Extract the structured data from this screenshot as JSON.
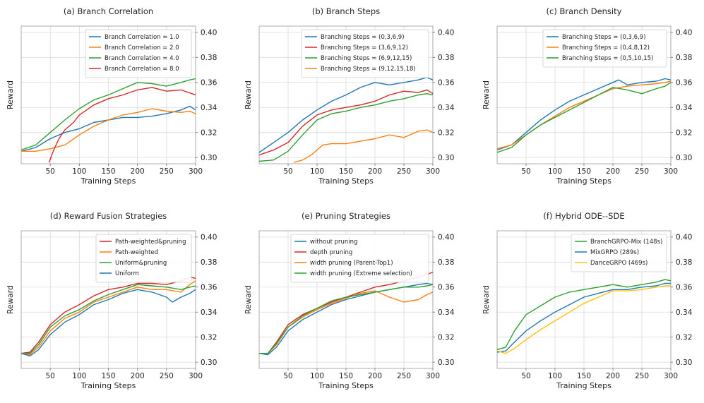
{
  "chart_data": [
    {
      "type": "line",
      "title": "(a) Branch Correlation",
      "xlabel": "Training Steps",
      "ylabel": "Reward",
      "xlim": [
        0,
        300
      ],
      "ylim": [
        0.295,
        0.405
      ],
      "xticks": [
        50,
        100,
        150,
        200,
        250,
        300
      ],
      "yticks": [
        0.3,
        0.32,
        0.34,
        0.36,
        0.38,
        0.4
      ],
      "y_axis_side": "right",
      "grid": true,
      "legend": "top-right",
      "series": [
        {
          "name": "Branch Correlation = 1.0",
          "color": "#1f77b4",
          "x": [
            0,
            25,
            50,
            75,
            100,
            125,
            150,
            175,
            200,
            225,
            250,
            275,
            290,
            300
          ],
          "y": [
            0.305,
            0.308,
            0.315,
            0.32,
            0.323,
            0.328,
            0.33,
            0.332,
            0.332,
            0.333,
            0.335,
            0.338,
            0.341,
            0.338
          ]
        },
        {
          "name": "Branch Correlation = 2.0",
          "color": "#ff7f0e",
          "x": [
            0,
            25,
            50,
            75,
            100,
            125,
            150,
            175,
            200,
            225,
            250,
            275,
            290,
            300
          ],
          "y": [
            0.305,
            0.305,
            0.307,
            0.31,
            0.318,
            0.325,
            0.33,
            0.334,
            0.336,
            0.339,
            0.337,
            0.336,
            0.337,
            0.335
          ]
        },
        {
          "name": "Branch Correlation = 4.0",
          "color": "#2ca02c",
          "x": [
            0,
            25,
            50,
            75,
            100,
            125,
            150,
            175,
            200,
            225,
            250,
            275,
            290,
            300
          ],
          "y": [
            0.306,
            0.31,
            0.32,
            0.33,
            0.339,
            0.346,
            0.35,
            0.355,
            0.36,
            0.359,
            0.357,
            0.36,
            0.362,
            0.363
          ]
        },
        {
          "name": "Branch Correlation = 8.0",
          "color": "#d62728",
          "x": [
            48,
            55,
            65,
            75,
            90,
            100,
            125,
            150,
            175,
            200,
            225,
            250,
            275,
            300
          ],
          "y": [
            0.296,
            0.305,
            0.315,
            0.322,
            0.328,
            0.334,
            0.342,
            0.347,
            0.35,
            0.354,
            0.356,
            0.353,
            0.354,
            0.35
          ]
        }
      ]
    },
    {
      "type": "line",
      "title": "(b) Branch Steps",
      "xlabel": "Training Steps",
      "ylabel": "Reward",
      "xlim": [
        0,
        300
      ],
      "ylim": [
        0.295,
        0.405
      ],
      "xticks": [
        50,
        100,
        150,
        200,
        250,
        300
      ],
      "yticks": [
        0.3,
        0.32,
        0.34,
        0.36,
        0.38,
        0.4
      ],
      "y_axis_side": "right",
      "grid": true,
      "legend": "top-right",
      "series": [
        {
          "name": "Branching Steps = (0,3,6,9)",
          "color": "#1f77b4",
          "x": [
            0,
            25,
            50,
            75,
            100,
            125,
            150,
            175,
            200,
            225,
            250,
            275,
            290,
            300
          ],
          "y": [
            0.304,
            0.312,
            0.32,
            0.33,
            0.338,
            0.345,
            0.35,
            0.356,
            0.36,
            0.358,
            0.36,
            0.362,
            0.364,
            0.362
          ]
        },
        {
          "name": "Branching Steps = (3,6,9,12)",
          "color": "#d62728",
          "x": [
            0,
            25,
            50,
            75,
            100,
            125,
            150,
            175,
            200,
            225,
            250,
            275,
            290,
            300
          ],
          "y": [
            0.302,
            0.306,
            0.312,
            0.325,
            0.334,
            0.338,
            0.34,
            0.342,
            0.345,
            0.35,
            0.353,
            0.352,
            0.354,
            0.351
          ]
        },
        {
          "name": "Branching Steps = (6,9,12,15)",
          "color": "#2ca02c",
          "x": [
            0,
            25,
            50,
            75,
            100,
            125,
            150,
            175,
            200,
            225,
            250,
            275,
            290,
            300
          ],
          "y": [
            0.297,
            0.298,
            0.305,
            0.318,
            0.33,
            0.335,
            0.337,
            0.34,
            0.342,
            0.345,
            0.347,
            0.35,
            0.351,
            0.35
          ]
        },
        {
          "name": "Branching Steps = (9,12,15,18)",
          "color": "#ff7f0e",
          "x": [
            60,
            75,
            90,
            100,
            110,
            125,
            150,
            175,
            200,
            225,
            250,
            275,
            290,
            300
          ],
          "y": [
            0.296,
            0.298,
            0.302,
            0.306,
            0.31,
            0.311,
            0.311,
            0.313,
            0.315,
            0.318,
            0.316,
            0.321,
            0.322,
            0.32
          ]
        }
      ]
    },
    {
      "type": "line",
      "title": "(c) Branch Density",
      "xlabel": "Training Steps",
      "ylabel": "Reward",
      "xlim": [
        0,
        300
      ],
      "ylim": [
        0.295,
        0.405
      ],
      "xticks": [
        50,
        100,
        150,
        200,
        250,
        300
      ],
      "yticks": [
        0.3,
        0.32,
        0.34,
        0.36,
        0.38,
        0.4
      ],
      "y_axis_side": "right",
      "grid": true,
      "legend": "top-right",
      "series": [
        {
          "name": "Branching Steps = (0,3,6,9)",
          "color": "#1f77b4",
          "x": [
            0,
            25,
            50,
            75,
            100,
            125,
            150,
            175,
            200,
            210,
            225,
            250,
            275,
            290,
            300
          ],
          "y": [
            0.306,
            0.31,
            0.32,
            0.33,
            0.338,
            0.345,
            0.35,
            0.355,
            0.36,
            0.362,
            0.358,
            0.36,
            0.361,
            0.363,
            0.362
          ]
        },
        {
          "name": "Branching Steps = (0,4,8,12)",
          "color": "#ff7f0e",
          "x": [
            0,
            25,
            50,
            75,
            100,
            125,
            150,
            175,
            200,
            225,
            250,
            275,
            290,
            300
          ],
          "y": [
            0.307,
            0.31,
            0.318,
            0.326,
            0.333,
            0.34,
            0.345,
            0.35,
            0.355,
            0.357,
            0.358,
            0.359,
            0.36,
            0.361
          ]
        },
        {
          "name": "Branching Steps = (0,5,10,15)",
          "color": "#2ca02c",
          "x": [
            0,
            25,
            50,
            75,
            100,
            125,
            150,
            175,
            200,
            225,
            250,
            275,
            290,
            300
          ],
          "y": [
            0.304,
            0.308,
            0.318,
            0.326,
            0.332,
            0.338,
            0.344,
            0.35,
            0.356,
            0.354,
            0.351,
            0.355,
            0.357,
            0.36
          ]
        }
      ]
    },
    {
      "type": "line",
      "title": "(d) Reward Fusion Strategies",
      "xlabel": "Training Steps",
      "ylabel": "Reward",
      "xlim": [
        0,
        300
      ],
      "ylim": [
        0.295,
        0.405
      ],
      "xticks": [
        50,
        100,
        150,
        200,
        250,
        300
      ],
      "yticks": [
        0.3,
        0.32,
        0.34,
        0.36,
        0.38,
        0.4
      ],
      "y_axis_side": "right",
      "grid": true,
      "legend": "top-right",
      "series": [
        {
          "name": "Path-weighted&pruning",
          "color": "#d62728",
          "x": [
            0,
            15,
            30,
            50,
            75,
            100,
            125,
            150,
            175,
            200,
            225,
            250,
            275,
            290,
            300
          ],
          "y": [
            0.307,
            0.308,
            0.316,
            0.33,
            0.34,
            0.346,
            0.353,
            0.358,
            0.36,
            0.363,
            0.363,
            0.362,
            0.365,
            0.368,
            0.367
          ]
        },
        {
          "name": "Path-weighted",
          "color": "#ff7f0e",
          "x": [
            0,
            15,
            30,
            50,
            75,
            100,
            125,
            150,
            175,
            200,
            225,
            250,
            275,
            290,
            300
          ],
          "y": [
            0.307,
            0.306,
            0.312,
            0.325,
            0.335,
            0.34,
            0.348,
            0.352,
            0.356,
            0.36,
            0.358,
            0.358,
            0.356,
            0.362,
            0.365
          ]
        },
        {
          "name": "Uniform&pruning",
          "color": "#2ca02c",
          "x": [
            0,
            15,
            30,
            50,
            75,
            100,
            125,
            150,
            175,
            200,
            225,
            250,
            275,
            290,
            300
          ],
          "y": [
            0.307,
            0.307,
            0.314,
            0.328,
            0.337,
            0.342,
            0.349,
            0.354,
            0.358,
            0.362,
            0.361,
            0.36,
            0.358,
            0.36,
            0.361
          ]
        },
        {
          "name": "Uniform",
          "color": "#1f77b4",
          "x": [
            0,
            15,
            30,
            50,
            75,
            100,
            125,
            150,
            175,
            200,
            225,
            250,
            260,
            275,
            290,
            300
          ],
          "y": [
            0.307,
            0.305,
            0.31,
            0.322,
            0.332,
            0.338,
            0.346,
            0.35,
            0.355,
            0.358,
            0.356,
            0.352,
            0.348,
            0.352,
            0.355,
            0.358
          ]
        }
      ]
    },
    {
      "type": "line",
      "title": "(e) Pruning Strategies",
      "xlabel": "Training Steps",
      "ylabel": "Reward",
      "xlim": [
        0,
        300
      ],
      "ylim": [
        0.295,
        0.405
      ],
      "xticks": [
        50,
        100,
        150,
        200,
        250,
        300
      ],
      "yticks": [
        0.3,
        0.32,
        0.34,
        0.36,
        0.38,
        0.4
      ],
      "y_axis_side": "right",
      "grid": true,
      "legend": "top-right",
      "series": [
        {
          "name": "without pruning",
          "color": "#1f77b4",
          "x": [
            0,
            15,
            30,
            50,
            75,
            100,
            125,
            150,
            175,
            200,
            225,
            250,
            275,
            290,
            300
          ],
          "y": [
            0.307,
            0.306,
            0.312,
            0.325,
            0.334,
            0.34,
            0.346,
            0.35,
            0.353,
            0.356,
            0.358,
            0.36,
            0.362,
            0.363,
            0.362
          ]
        },
        {
          "name": "depth pruning",
          "color": "#d62728",
          "x": [
            0,
            15,
            30,
            50,
            75,
            100,
            125,
            150,
            175,
            200,
            225,
            250,
            275,
            290,
            300
          ],
          "y": [
            0.307,
            0.307,
            0.316,
            0.33,
            0.338,
            0.343,
            0.348,
            0.352,
            0.356,
            0.36,
            0.362,
            0.365,
            0.368,
            0.37,
            0.372
          ]
        },
        {
          "name": "width pruning (Parent-Top1)",
          "color": "#ff7f0e",
          "x": [
            0,
            15,
            30,
            50,
            75,
            100,
            125,
            150,
            175,
            200,
            225,
            250,
            275,
            290,
            300
          ],
          "y": [
            0.307,
            0.307,
            0.314,
            0.328,
            0.336,
            0.342,
            0.347,
            0.351,
            0.355,
            0.357,
            0.352,
            0.348,
            0.35,
            0.354,
            0.356
          ]
        },
        {
          "name": "width pruning (Extreme selection)",
          "color": "#2ca02c",
          "x": [
            0,
            15,
            30,
            50,
            75,
            100,
            125,
            150,
            175,
            200,
            225,
            250,
            275,
            290,
            300
          ],
          "y": [
            0.307,
            0.307,
            0.315,
            0.328,
            0.337,
            0.343,
            0.349,
            0.352,
            0.354,
            0.356,
            0.358,
            0.36,
            0.36,
            0.361,
            0.362
          ]
        }
      ]
    },
    {
      "type": "line",
      "title": "(f) Hybrid ODE--SDE",
      "xlabel": "Training Steps",
      "ylabel": "Reward",
      "xlim": [
        0,
        300
      ],
      "ylim": [
        0.295,
        0.405
      ],
      "xticks": [
        50,
        100,
        150,
        200,
        250,
        300
      ],
      "yticks": [
        0.3,
        0.32,
        0.34,
        0.36,
        0.38,
        0.4
      ],
      "y_axis_side": "right",
      "grid": true,
      "legend": "top-right",
      "series": [
        {
          "name": "BranchGRPO-Mix (148s)",
          "color": "#2ca02c",
          "x": [
            0,
            15,
            30,
            50,
            75,
            100,
            125,
            150,
            175,
            200,
            225,
            250,
            275,
            290,
            300
          ],
          "y": [
            0.31,
            0.312,
            0.325,
            0.338,
            0.345,
            0.352,
            0.356,
            0.358,
            0.36,
            0.362,
            0.36,
            0.362,
            0.364,
            0.366,
            0.365
          ]
        },
        {
          "name": "MixGRPO (289s)",
          "color": "#1f77b4",
          "x": [
            0,
            15,
            30,
            50,
            75,
            100,
            125,
            150,
            175,
            200,
            225,
            250,
            275,
            290,
            300
          ],
          "y": [
            0.308,
            0.309,
            0.316,
            0.325,
            0.333,
            0.34,
            0.346,
            0.352,
            0.355,
            0.358,
            0.358,
            0.36,
            0.361,
            0.363,
            0.363
          ]
        },
        {
          "name": "DanceGRPO (469s)",
          "color": "#ffc107",
          "x": [
            0,
            15,
            30,
            50,
            75,
            100,
            125,
            150,
            175,
            200,
            225,
            250,
            275,
            290,
            300
          ],
          "y": [
            0.309,
            0.307,
            0.311,
            0.318,
            0.326,
            0.333,
            0.34,
            0.347,
            0.352,
            0.357,
            0.357,
            0.358,
            0.36,
            0.361,
            0.361
          ]
        }
      ]
    }
  ]
}
